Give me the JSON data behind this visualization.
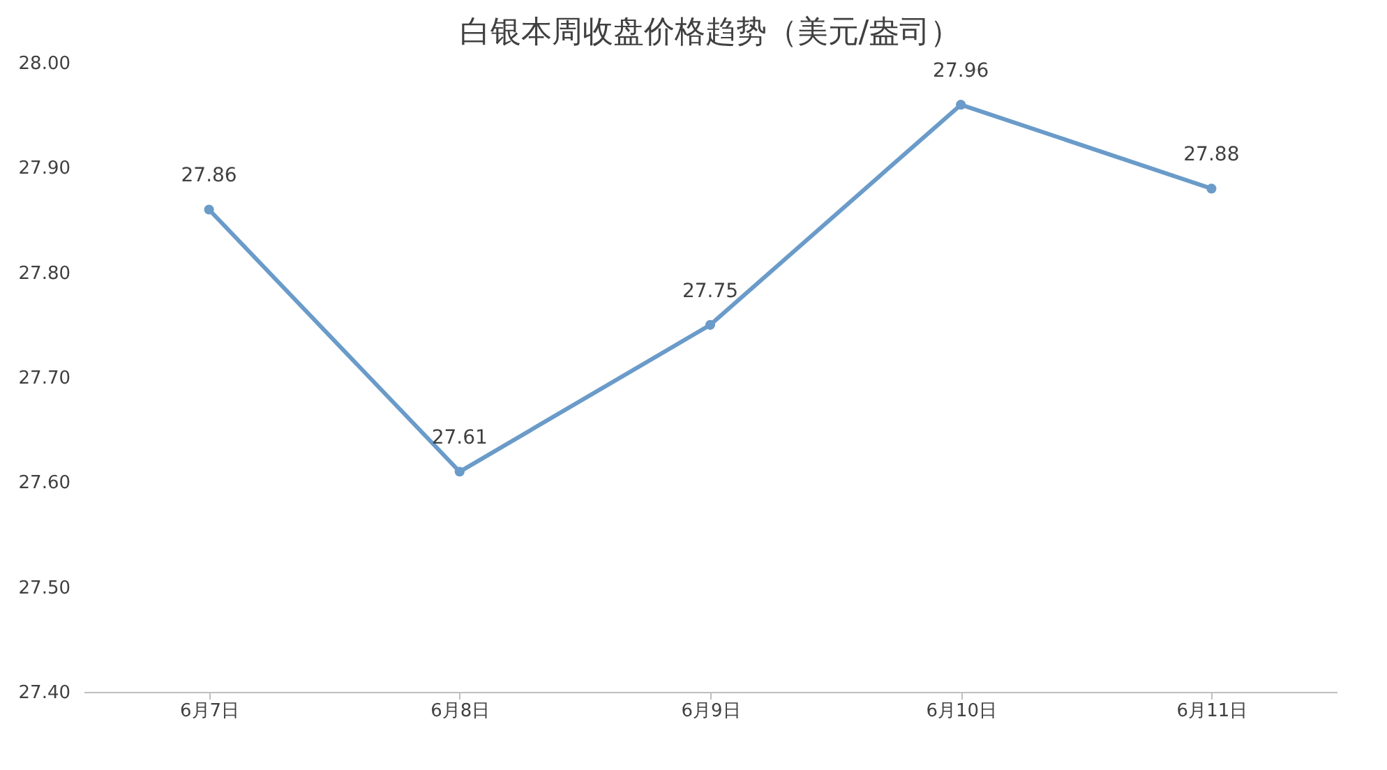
{
  "chart_data": {
    "type": "line",
    "title": "白银本周收盘价格趋势（美元/盎司）",
    "categories": [
      "6月7日",
      "6月8日",
      "6月9日",
      "6月10日",
      "6月11日"
    ],
    "series": [
      {
        "color": "#6a9bc9",
        "values": [
          27.86,
          27.61,
          27.75,
          27.96,
          27.88
        ]
      }
    ],
    "ylim": [
      27.4,
      28.0
    ],
    "yticks": [
      {
        "value": 27.4,
        "label": "27.40"
      },
      {
        "value": 27.5,
        "label": "27.50"
      },
      {
        "value": 27.6,
        "label": "27.60"
      },
      {
        "value": 27.7,
        "label": "27.70"
      },
      {
        "value": 27.8,
        "label": "27.80"
      },
      {
        "value": 27.9,
        "label": "27.90"
      },
      {
        "value": 28.0,
        "label": "28.00"
      }
    ],
    "data_labels": true,
    "marker": "circle",
    "line_style": "solid",
    "grid": false
  }
}
